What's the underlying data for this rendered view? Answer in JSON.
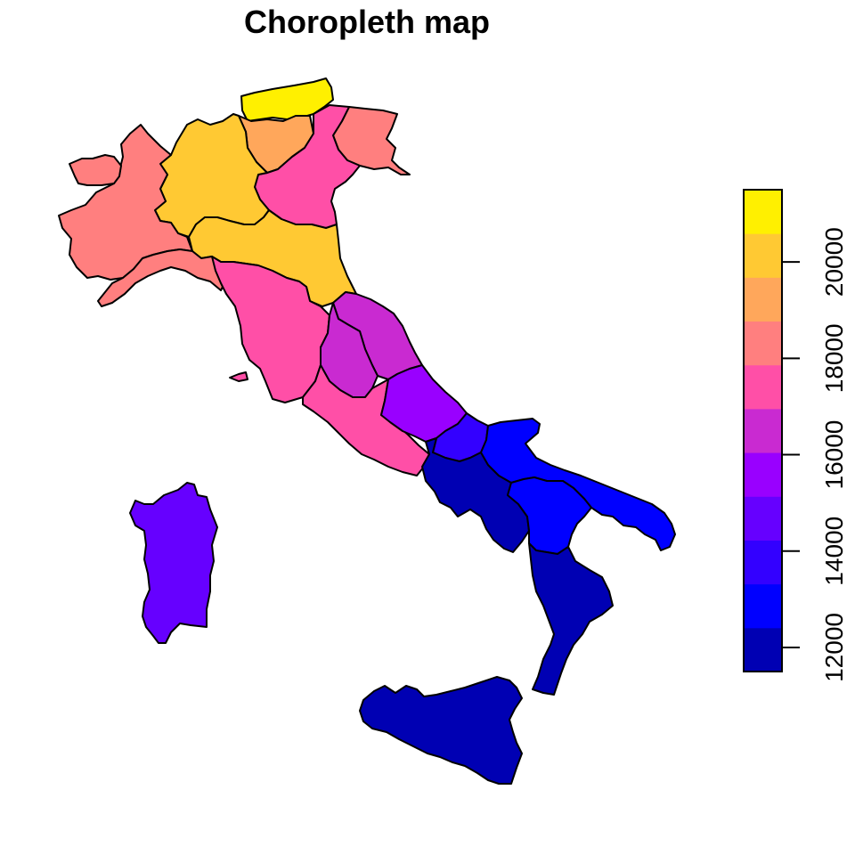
{
  "title": "Choropleth map",
  "palette": [
    "#0000B3",
    "#0000FF",
    "#3300FF",
    "#6600FF",
    "#9900FF",
    "#C92AD1",
    "#FF4FA7",
    "#FF7F7F",
    "#FFA75B",
    "#FFC933",
    "#FFF000"
  ],
  "legend": {
    "min": 11500,
    "max": 21500,
    "ticks": [
      12000,
      14000,
      16000,
      18000,
      20000
    ],
    "tick_labels": [
      "12000",
      "14000",
      "16000",
      "18000",
      "20000"
    ]
  },
  "regions": [
    {
      "id": "trentino-alto-adige",
      "color": "#FFF000"
    },
    {
      "id": "veneto",
      "color": "#FF4FA7"
    },
    {
      "id": "friuli-venezia-giulia",
      "color": "#FF7F7F"
    },
    {
      "id": "lombardia",
      "color": "#FFC933"
    },
    {
      "id": "emilia-romagna",
      "color": "#FFC933"
    },
    {
      "id": "piemonte",
      "color": "#FF7F7F"
    },
    {
      "id": "valle-d-aosta",
      "color": "#FF7F7F"
    },
    {
      "id": "liguria",
      "color": "#FF7F7F"
    },
    {
      "id": "toscana",
      "color": "#FF4FA7"
    },
    {
      "id": "elba",
      "color": "#FF4FA7"
    },
    {
      "id": "lazio",
      "color": "#FF4FA7"
    },
    {
      "id": "marche",
      "color": "#C92AD1"
    },
    {
      "id": "umbria",
      "color": "#C92AD1"
    },
    {
      "id": "abruzzo",
      "color": "#9900FF"
    },
    {
      "id": "molise",
      "color": "#3300FF"
    },
    {
      "id": "campania",
      "color": "#0000B3"
    },
    {
      "id": "puglia",
      "color": "#0000FF"
    },
    {
      "id": "basilicata",
      "color": "#0000FF"
    },
    {
      "id": "calabria",
      "color": "#0000B3"
    },
    {
      "id": "sicilia",
      "color": "#0000B3"
    },
    {
      "id": "sardegna",
      "color": "#6600FF"
    },
    {
      "id": "trentino-east",
      "color": "#FFA75B"
    }
  ]
}
